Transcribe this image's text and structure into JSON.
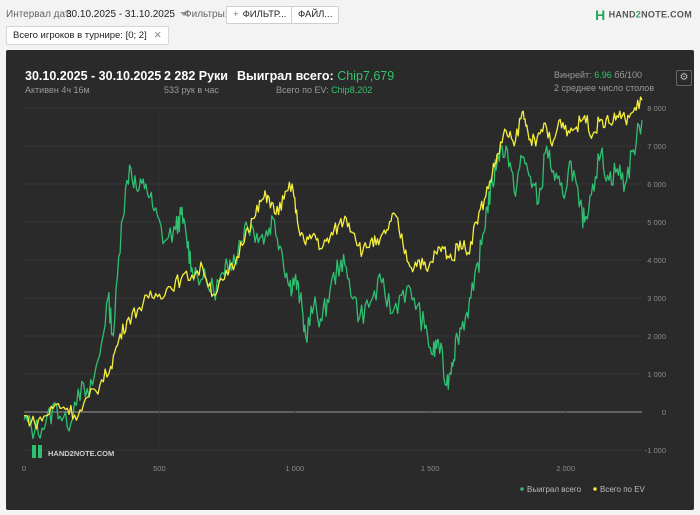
{
  "topbar": {
    "interval_label": "Интервал дат:",
    "date_range": "30.10.2025 - 31.10.2025",
    "filters_label": "Фильтры:",
    "filter_button": "ФИЛЬТР...",
    "file_button": "ФАЙЛ..."
  },
  "brand": {
    "h": "H",
    "part1": "HAND",
    "part2": "2",
    "part3": "NOTE.COM"
  },
  "filter_chip": {
    "label": "Всего игроков в турнире: [0; 2]",
    "close": "✕"
  },
  "summary": {
    "date": "30.10.2025 - 30.10.2025",
    "active": "Активен 4ч 16м",
    "hands": "2 282 Руки",
    "hands_per_hour": "533 рук в час",
    "won_label": "Выиграл всего:",
    "won_value": "Chip7,679",
    "ev_label": "Всего по EV:",
    "ev_value": "Chip8,202",
    "winrate_label": "Винрейт:",
    "winrate_value": "6.96",
    "winrate_unit": "бб/100",
    "tables": "2 среднее число столов"
  },
  "colors": {
    "won": "#2fbf71",
    "ev": "#f4ef3c",
    "panel": "#2a2a2a",
    "accent": "#34c46a"
  },
  "chart_data": {
    "type": "line",
    "x_ticks": [
      "0",
      "500",
      "1 000",
      "1 500",
      "2 000"
    ],
    "y_ticks": [
      "-1 000",
      "0",
      "1 000",
      "2 000",
      "3 000",
      "4 000",
      "5 000",
      "6 000",
      "7 000",
      "8 000"
    ],
    "xlim": [
      0,
      2282
    ],
    "ylim": [
      -1000,
      8000
    ],
    "watermark": "HAND2NOTE.COM",
    "series": [
      {
        "name": "Выиграл всего",
        "color": "#2fbf71",
        "points": [
          [
            0,
            -200
          ],
          [
            40,
            -500
          ],
          [
            80,
            -300
          ],
          [
            120,
            200
          ],
          [
            160,
            -400
          ],
          [
            200,
            600
          ],
          [
            240,
            400
          ],
          [
            280,
            1500
          ],
          [
            310,
            3000
          ],
          [
            330,
            2000
          ],
          [
            360,
            5000
          ],
          [
            390,
            6500
          ],
          [
            420,
            5800
          ],
          [
            450,
            6000
          ],
          [
            480,
            5300
          ],
          [
            520,
            4500
          ],
          [
            560,
            4800
          ],
          [
            580,
            5200
          ],
          [
            600,
            4600
          ],
          [
            620,
            3800
          ],
          [
            660,
            3500
          ],
          [
            700,
            3200
          ],
          [
            740,
            3600
          ],
          [
            760,
            4000
          ],
          [
            790,
            4200
          ],
          [
            820,
            5000
          ],
          [
            860,
            4700
          ],
          [
            890,
            4600
          ],
          [
            920,
            5100
          ],
          [
            950,
            4300
          ],
          [
            980,
            3300
          ],
          [
            1000,
            3500
          ],
          [
            1020,
            3000
          ],
          [
            1040,
            2000
          ],
          [
            1070,
            2800
          ],
          [
            1100,
            2400
          ],
          [
            1130,
            3200
          ],
          [
            1170,
            4000
          ],
          [
            1200,
            3500
          ],
          [
            1240,
            2500
          ],
          [
            1280,
            2900
          ],
          [
            1320,
            3400
          ],
          [
            1360,
            2600
          ],
          [
            1400,
            3200
          ],
          [
            1440,
            3000
          ],
          [
            1480,
            2200
          ],
          [
            1510,
            1500
          ],
          [
            1530,
            1900
          ],
          [
            1560,
            700
          ],
          [
            1580,
            1300
          ],
          [
            1600,
            2000
          ],
          [
            1630,
            2500
          ],
          [
            1660,
            3200
          ],
          [
            1690,
            4400
          ],
          [
            1710,
            5400
          ],
          [
            1730,
            6000
          ],
          [
            1750,
            6800
          ],
          [
            1780,
            7000
          ],
          [
            1810,
            5800
          ],
          [
            1840,
            6700
          ],
          [
            1870,
            6200
          ],
          [
            1900,
            5500
          ],
          [
            1930,
            7000
          ],
          [
            1960,
            6100
          ],
          [
            1990,
            5700
          ],
          [
            2020,
            6600
          ],
          [
            2050,
            5400
          ],
          [
            2070,
            5000
          ],
          [
            2100,
            6000
          ],
          [
            2130,
            6800
          ],
          [
            2160,
            6100
          ],
          [
            2190,
            6400
          ],
          [
            2220,
            6000
          ],
          [
            2250,
            6900
          ],
          [
            2282,
            7679
          ]
        ]
      },
      {
        "name": "Всего по EV",
        "color": "#f4ef3c",
        "points": [
          [
            0,
            -100
          ],
          [
            40,
            -300
          ],
          [
            80,
            -100
          ],
          [
            120,
            200
          ],
          [
            160,
            100
          ],
          [
            200,
            -100
          ],
          [
            240,
            400
          ],
          [
            280,
            700
          ],
          [
            320,
            1200
          ],
          [
            350,
            1900
          ],
          [
            380,
            2400
          ],
          [
            420,
            2700
          ],
          [
            460,
            3000
          ],
          [
            500,
            3100
          ],
          [
            540,
            3300
          ],
          [
            580,
            3500
          ],
          [
            620,
            3600
          ],
          [
            660,
            3800
          ],
          [
            700,
            3100
          ],
          [
            740,
            3500
          ],
          [
            780,
            3900
          ],
          [
            820,
            4800
          ],
          [
            850,
            5100
          ],
          [
            880,
            5600
          ],
          [
            900,
            5700
          ],
          [
            930,
            5200
          ],
          [
            960,
            5600
          ],
          [
            990,
            6000
          ],
          [
            1010,
            5000
          ],
          [
            1040,
            4400
          ],
          [
            1070,
            4700
          ],
          [
            1100,
            4300
          ],
          [
            1130,
            4600
          ],
          [
            1160,
            4900
          ],
          [
            1190,
            5100
          ],
          [
            1220,
            4700
          ],
          [
            1250,
            4200
          ],
          [
            1280,
            4500
          ],
          [
            1310,
            4400
          ],
          [
            1340,
            4800
          ],
          [
            1370,
            5200
          ],
          [
            1400,
            4400
          ],
          [
            1430,
            3800
          ],
          [
            1460,
            4000
          ],
          [
            1490,
            3700
          ],
          [
            1520,
            4200
          ],
          [
            1550,
            4300
          ],
          [
            1580,
            4000
          ],
          [
            1610,
            4500
          ],
          [
            1640,
            4200
          ],
          [
            1670,
            5000
          ],
          [
            1700,
            5600
          ],
          [
            1730,
            6300
          ],
          [
            1750,
            6800
          ],
          [
            1780,
            7400
          ],
          [
            1810,
            7000
          ],
          [
            1840,
            7900
          ],
          [
            1860,
            7400
          ],
          [
            1890,
            7000
          ],
          [
            1920,
            7600
          ],
          [
            1950,
            7000
          ],
          [
            1980,
            7700
          ],
          [
            2010,
            7400
          ],
          [
            2040,
            7500
          ],
          [
            2070,
            7800
          ],
          [
            2100,
            7300
          ],
          [
            2130,
            7700
          ],
          [
            2160,
            7600
          ],
          [
            2190,
            7800
          ],
          [
            2220,
            7700
          ],
          [
            2250,
            7900
          ],
          [
            2282,
            8202
          ]
        ]
      }
    ]
  }
}
